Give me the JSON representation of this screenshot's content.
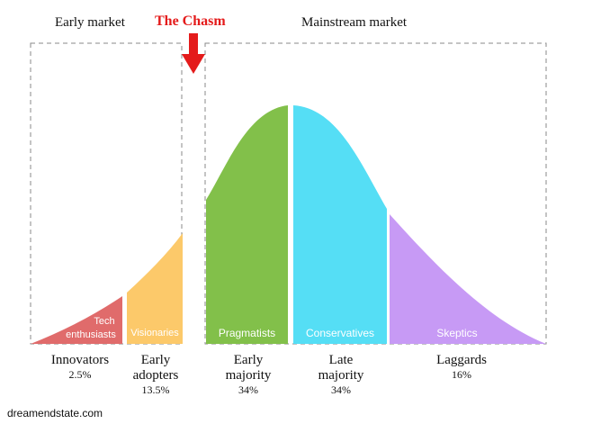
{
  "header": {
    "early_market": "Early market",
    "chasm": "The Chasm",
    "mainstream_market": "Mainstream market"
  },
  "segments": [
    {
      "label_line1": "Tech",
      "label_line2": "enthusiasts",
      "name_line1": "Innovators",
      "name_line2": "",
      "percent": "2.5%",
      "color": "#e06b6b"
    },
    {
      "label_line1": "Visionaries",
      "label_line2": "",
      "name_line1": "Early",
      "name_line2": "adopters",
      "percent": "13.5%",
      "color": "#fcc96a"
    },
    {
      "label_line1": "Pragmatists",
      "label_line2": "",
      "name_line1": "Early",
      "name_line2": "majority",
      "percent": "34%",
      "color": "#82c04a"
    },
    {
      "label_line1": "Conservatives",
      "label_line2": "",
      "name_line1": "Late",
      "name_line2": "majority",
      "percent": "34%",
      "color": "#55def5"
    },
    {
      "label_line1": "Skeptics",
      "label_line2": "",
      "name_line1": "Laggards",
      "name_line2": "",
      "percent": "16%",
      "color": "#c79af5"
    }
  ],
  "colors": {
    "chasm_arrow": "#e41b1b",
    "dashed_box": "#8a8a8a"
  },
  "footer": {
    "source": "dreamendstate.com"
  }
}
